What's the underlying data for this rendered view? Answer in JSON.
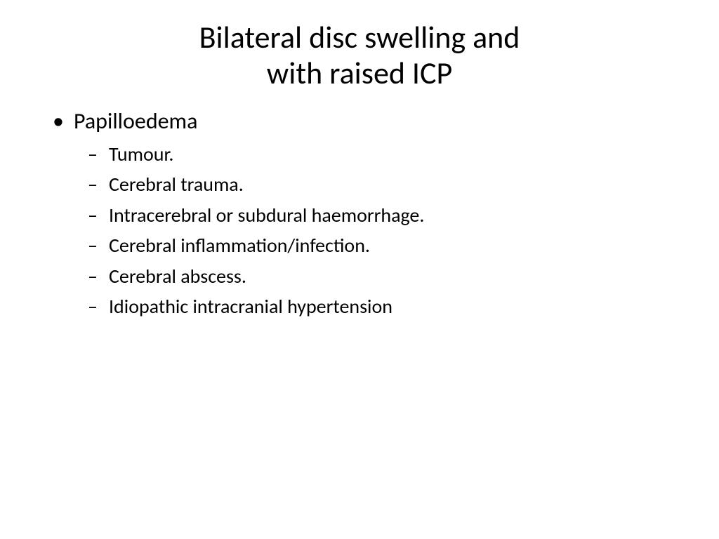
{
  "slide": {
    "title_line1": "Bilateral disc swelling and",
    "title_line2": "with raised ICP",
    "bullets": {
      "level1_item": "Papilloedema",
      "level2_items": [
        "Tumour.",
        "Cerebral trauma.",
        "Intracerebral or subdural haemorrhage.",
        "Cerebral inflammation/infection.",
        "Cerebral abscess.",
        "Idiopathic intracranial hypertension"
      ]
    }
  },
  "style": {
    "background_color": "#ffffff",
    "text_color": "#000000",
    "title_fontsize": 44,
    "level1_fontsize": 32,
    "level2_fontsize": 28,
    "font_family": "Calibri"
  }
}
